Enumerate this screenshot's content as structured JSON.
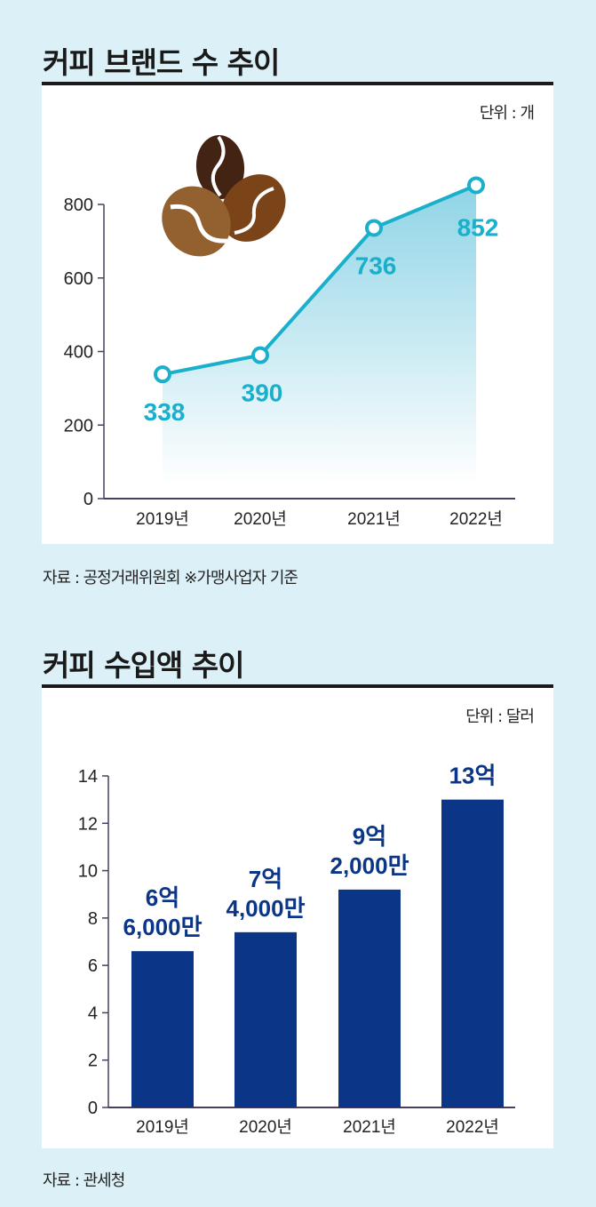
{
  "chart_data": [
    {
      "type": "line",
      "title": "커피 브랜드 수 추이",
      "unit_label": "단위 : 개",
      "categories": [
        "2019년",
        "2020년",
        "2021년",
        "2022년"
      ],
      "values": [
        338,
        390,
        736,
        852
      ],
      "data_labels": [
        "338",
        "390",
        "736",
        "852"
      ],
      "ylim": [
        0,
        800
      ],
      "yticks": [
        "0",
        "200",
        "400",
        "600",
        "800"
      ],
      "ytick_values": [
        0,
        200,
        400,
        600,
        800
      ],
      "grid": false,
      "area_fill": true,
      "source": "자료 : 공정거래위원회 ※가맹사업자 기준",
      "colors": {
        "line": "#1aafcb",
        "fill": "#9ad9e8",
        "label": "#1aafcb",
        "axis": "#4a3f5c"
      },
      "decoration": "coffee-beans-icon"
    },
    {
      "type": "bar",
      "title": "커피 수입액 추이",
      "unit_label": "단위 : 달러",
      "categories": [
        "2019년",
        "2020년",
        "2021년",
        "2022년"
      ],
      "values": [
        6.6,
        7.4,
        9.2,
        13
      ],
      "data_labels": [
        [
          "6억",
          "6,000만"
        ],
        [
          "7억",
          "4,000만"
        ],
        [
          "9억",
          "2,000만"
        ],
        [
          "13억"
        ]
      ],
      "ylim": [
        0,
        14
      ],
      "yticks": [
        "0",
        "2",
        "4",
        "6",
        "8",
        "10",
        "12",
        "14"
      ],
      "ytick_values": [
        0,
        2,
        4,
        6,
        8,
        10,
        12,
        14
      ],
      "grid": false,
      "source": "자료 : 관세청",
      "colors": {
        "bar": "#0b3587",
        "label": "#0b3587",
        "axis": "#4a3f5c"
      }
    }
  ]
}
